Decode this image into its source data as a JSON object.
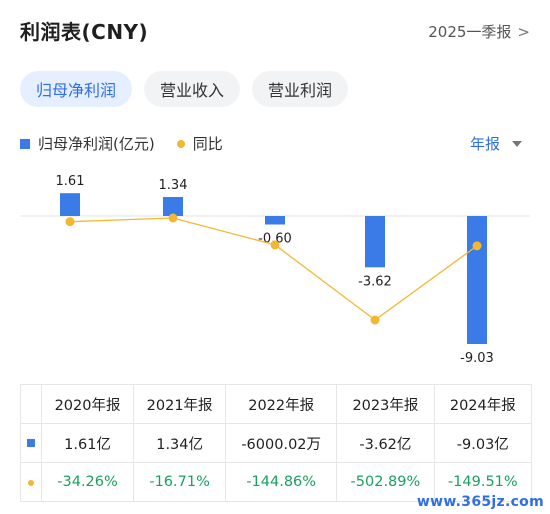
{
  "header": {
    "title": "利润表(CNY)",
    "period": "2025一季报",
    "chevron": ">"
  },
  "tabs": [
    {
      "label": "归母净利润",
      "active": true
    },
    {
      "label": "营业收入",
      "active": false
    },
    {
      "label": "营业利润",
      "active": false
    }
  ],
  "legend": {
    "series1": "归母净利润(亿元)",
    "series2": "同比"
  },
  "period_select": {
    "label": "年报",
    "icon": "dropdown-triangle-icon"
  },
  "colors": {
    "bar": "#3b7be8",
    "line": "#f5b731",
    "positive_text": "#19a15f",
    "accent": "#2f6fe6"
  },
  "chart_data": {
    "type": "bar",
    "categories": [
      "2020年报",
      "2021年报",
      "2022年报",
      "2023年报",
      "2024年报"
    ],
    "series": [
      {
        "name": "归母净利润(亿元)",
        "values": [
          1.61,
          1.34,
          -0.6,
          -3.62,
          -9.03
        ],
        "labels": [
          "1.61",
          "1.34",
          "-0.60",
          "-3.62",
          "-9.03"
        ]
      },
      {
        "name": "同比",
        "type": "line",
        "values": [
          -34.26,
          -16.71,
          -144.86,
          -502.89,
          -149.51
        ]
      }
    ]
  },
  "table": {
    "headers": [
      "2020年报",
      "2021年报",
      "2022年报",
      "2023年报",
      "2024年报"
    ],
    "profit_row": [
      "1.61亿",
      "1.34亿",
      "-6000.02万",
      "-3.62亿",
      "-9.03亿"
    ],
    "yoy_row": [
      "-34.26%",
      "-16.71%",
      "-144.86%",
      "-502.89%",
      "-149.51%"
    ]
  },
  "watermark": "www.365jz.com"
}
